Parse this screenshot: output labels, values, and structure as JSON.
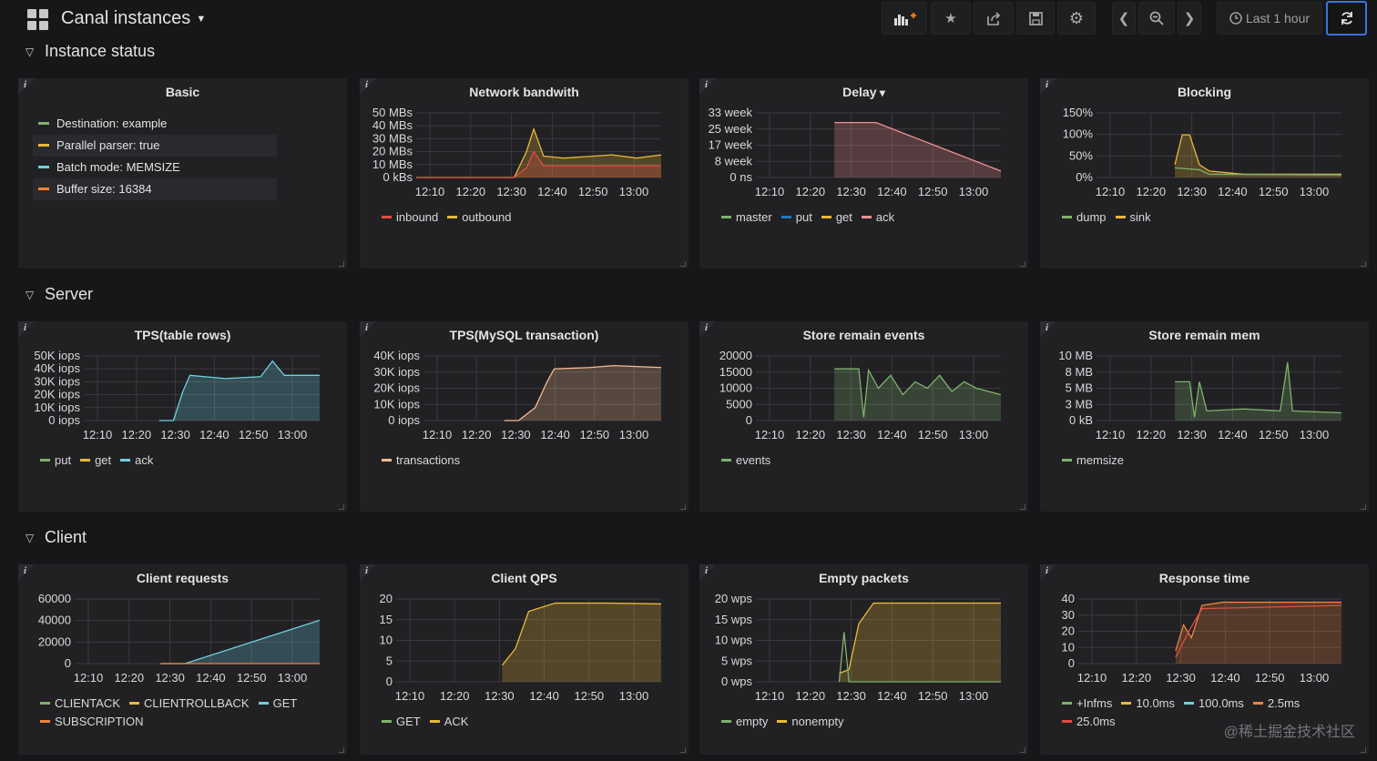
{
  "header": {
    "title": "Canal instances",
    "time_range": "Last 1 hour",
    "icons": [
      "add-panel-icon",
      "star-icon",
      "share-icon",
      "save-icon",
      "gear-icon",
      "chevron-left-icon",
      "zoom-out-icon",
      "chevron-right-icon",
      "clock-icon",
      "refresh-icon"
    ]
  },
  "rows": [
    {
      "title": "Instance status"
    },
    {
      "title": "Server"
    },
    {
      "title": "Client"
    }
  ],
  "basic": {
    "title": "Basic",
    "items": [
      {
        "text": "Destination: example",
        "color": "#7eb26d"
      },
      {
        "text": "Parallel parser: true",
        "color": "#eab839"
      },
      {
        "text": "Batch mode: MEMSIZE",
        "color": "#6ed0e0"
      },
      {
        "text": "Buffer size: 16384",
        "color": "#ef843c"
      }
    ]
  },
  "x_ticks": [
    "12:10",
    "12:20",
    "12:30",
    "12:40",
    "12:50",
    "13:00"
  ],
  "panels": [
    {
      "title": "Network bandwith",
      "yticks": [
        "50 MBs",
        "40 MBs",
        "30 MBs",
        "20 MBs",
        "10 MBs",
        "0 kBs"
      ],
      "legend": [
        {
          "name": "inbound",
          "color": "#e24d42"
        },
        {
          "name": "outbound",
          "color": "#eab839"
        }
      ]
    },
    {
      "title": "Delay",
      "yticks": [
        "33 week",
        "25 week",
        "17 week",
        "8 week",
        "0 ns"
      ],
      "legend": [
        {
          "name": "master",
          "color": "#7eb26d"
        },
        {
          "name": "put",
          "color": "#1f78c1"
        },
        {
          "name": "get",
          "color": "#eab839"
        },
        {
          "name": "ack",
          "color": "#f29191"
        }
      ]
    },
    {
      "title": "Blocking",
      "yticks": [
        "150%",
        "100%",
        "50%",
        "0%"
      ],
      "legend": [
        {
          "name": "dump",
          "color": "#7eb26d"
        },
        {
          "name": "sink",
          "color": "#eab839"
        }
      ]
    },
    {
      "title": "TPS(table rows)",
      "yticks": [
        "50K iops",
        "40K iops",
        "30K iops",
        "20K iops",
        "10K iops",
        "0 iops"
      ],
      "legend": [
        {
          "name": "put",
          "color": "#7eb26d"
        },
        {
          "name": "get",
          "color": "#eab839"
        },
        {
          "name": "ack",
          "color": "#6ed0e0"
        }
      ]
    },
    {
      "title": "TPS(MySQL transaction)",
      "yticks": [
        "40K iops",
        "30K iops",
        "20K iops",
        "10K iops",
        "0 iops"
      ],
      "legend": [
        {
          "name": "transactions",
          "color": "#f9ba8f"
        }
      ]
    },
    {
      "title": "Store remain events",
      "yticks": [
        "20000",
        "15000",
        "10000",
        "5000",
        "0"
      ],
      "legend": [
        {
          "name": "events",
          "color": "#7eb26d"
        }
      ]
    },
    {
      "title": "Store remain mem",
      "yticks": [
        "10 MB",
        "8 MB",
        "5 MB",
        "3 MB",
        "0 kB"
      ],
      "legend": [
        {
          "name": "memsize",
          "color": "#7eb26d"
        }
      ]
    },
    {
      "title": "Client requests",
      "yticks": [
        "60000",
        "40000",
        "20000",
        "0"
      ],
      "legend": [
        {
          "name": "CLIENTACK",
          "color": "#7eb26d"
        },
        {
          "name": "CLIENTROLLBACK",
          "color": "#eab839"
        },
        {
          "name": "GET",
          "color": "#6ed0e0"
        },
        {
          "name": "SUBSCRIPTION",
          "color": "#ef843c"
        }
      ]
    },
    {
      "title": "Client QPS",
      "yticks": [
        "20",
        "15",
        "10",
        "5",
        "0"
      ],
      "legend": [
        {
          "name": "GET",
          "color": "#7eb26d"
        },
        {
          "name": "ACK",
          "color": "#eab839"
        }
      ]
    },
    {
      "title": "Empty packets",
      "yticks": [
        "20 wps",
        "15 wps",
        "10 wps",
        "5 wps",
        "0 wps"
      ],
      "legend": [
        {
          "name": "empty",
          "color": "#7eb26d"
        },
        {
          "name": "nonempty",
          "color": "#eab839"
        }
      ]
    },
    {
      "title": "Response time",
      "yticks": [
        "40",
        "30",
        "20",
        "10",
        "0"
      ],
      "legend": [
        {
          "name": "+Infms",
          "color": "#7eb26d"
        },
        {
          "name": "10.0ms",
          "color": "#eab839"
        },
        {
          "name": "100.0ms",
          "color": "#6ed0e0"
        },
        {
          "name": "2.5ms",
          "color": "#ef843c"
        },
        {
          "name": "25.0ms",
          "color": "#e24d42"
        }
      ]
    }
  ],
  "watermark": "@稀土掘金技术社区"
}
